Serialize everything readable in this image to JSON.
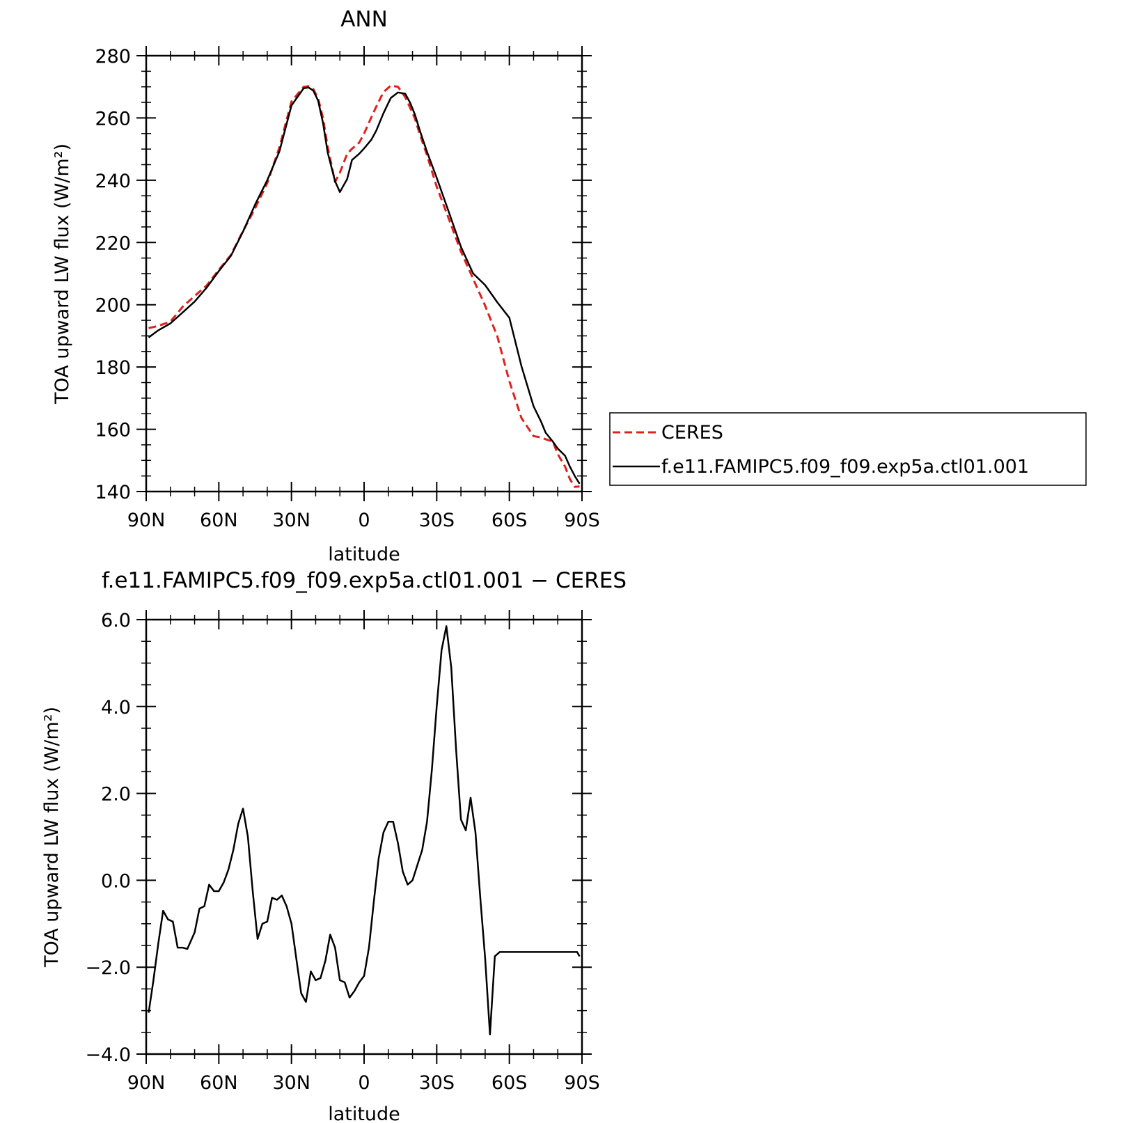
{
  "chart_data": [
    {
      "type": "line",
      "title": "ANN",
      "xlabel": "latitude",
      "ylabel": "TOA upward LW flux (W/m²)",
      "xlim": [
        90,
        -90
      ],
      "ylim": [
        140,
        280
      ],
      "x_ticks": [
        {
          "value": 90,
          "label": "90N"
        },
        {
          "value": 60,
          "label": "60N"
        },
        {
          "value": 30,
          "label": "30N"
        },
        {
          "value": 0,
          "label": "0"
        },
        {
          "value": -30,
          "label": "30S"
        },
        {
          "value": -60,
          "label": "60S"
        },
        {
          "value": -90,
          "label": "90S"
        }
      ],
      "y_ticks": [
        {
          "value": 140,
          "label": "140"
        },
        {
          "value": 160,
          "label": "160"
        },
        {
          "value": 180,
          "label": "180"
        },
        {
          "value": 200,
          "label": "200"
        },
        {
          "value": 220,
          "label": "220"
        },
        {
          "value": 240,
          "label": "240"
        },
        {
          "value": 260,
          "label": "260"
        },
        {
          "value": 280,
          "label": "280"
        }
      ],
      "grid": false,
      "legend_position": "right",
      "series": [
        {
          "name": "CERES",
          "color": "#e0201b",
          "dash": "dashed",
          "x": [
            89,
            85,
            80,
            75,
            70,
            65,
            60,
            55,
            50,
            45,
            40,
            35,
            30,
            25,
            23,
            21,
            19,
            17,
            15,
            12,
            10,
            7,
            5,
            2,
            0,
            -3,
            -5,
            -8,
            -11,
            -14,
            -17,
            -19,
            -21,
            -23,
            -26,
            -30,
            -35,
            -40,
            -45,
            -50,
            -55,
            -60,
            -65,
            -70,
            -73,
            -75,
            -78,
            -80,
            -83,
            -85,
            -87,
            -89
          ],
          "values": [
            192.5,
            193.2,
            194.6,
            199.3,
            202.8,
            206.2,
            211.2,
            216.0,
            223.7,
            231.0,
            239.1,
            250.5,
            265.3,
            270.0,
            270.2,
            269.3,
            266.3,
            260.0,
            250.6,
            239.4,
            242.4,
            248.5,
            250.1,
            252.1,
            255.0,
            260.2,
            263.6,
            268.3,
            270.4,
            270.0,
            266.7,
            263.3,
            259.8,
            254.8,
            248.0,
            237.9,
            227.6,
            217.1,
            208.4,
            199.7,
            189.9,
            175.4,
            163.6,
            157.8,
            157.4,
            156.8,
            156.0,
            152.0,
            148.0,
            144.0,
            141.5,
            141.6
          ]
        },
        {
          "name": "f.e11.FAMIPC5.f09_f09.exp5a.ctl01.001",
          "color": "#000000",
          "dash": "solid",
          "x": [
            89,
            85,
            80,
            75,
            70,
            65,
            60,
            55,
            50,
            45,
            40,
            35,
            30,
            25,
            23,
            21,
            19,
            17,
            15,
            12,
            10,
            7,
            5,
            2,
            0,
            -3,
            -5,
            -8,
            -11,
            -14,
            -17,
            -19,
            -21,
            -23,
            -26,
            -30,
            -35,
            -40,
            -45,
            -50,
            -55,
            -60,
            -65,
            -70,
            -73,
            -75,
            -78,
            -80,
            -83,
            -85,
            -87,
            -89
          ],
          "values": [
            189.5,
            191.8,
            194.0,
            197.5,
            201.0,
            205.5,
            210.8,
            215.7,
            223.5,
            232.2,
            240.0,
            249.2,
            264.0,
            269.5,
            269.8,
            268.8,
            265.6,
            258.5,
            248.8,
            239.7,
            236.2,
            240.4,
            246.5,
            248.5,
            250.2,
            253.0,
            255.9,
            261.5,
            266.4,
            268.2,
            267.8,
            264.9,
            261.1,
            256.0,
            249.1,
            240.8,
            229.8,
            218.6,
            210.1,
            206.3,
            200.8,
            195.8,
            180.2,
            167.4,
            162.6,
            158.9,
            156.0,
            153.8,
            151.5,
            148.0,
            145.0,
            142.5
          ]
        }
      ]
    },
    {
      "type": "line",
      "title": "f.e11.FAMIPC5.f09_f09.exp5a.ctl01.001 − CERES",
      "xlabel": "latitude",
      "ylabel": "TOA upward LW flux (W/m²)",
      "xlim": [
        90,
        -90
      ],
      "ylim": [
        -4,
        6
      ],
      "x_ticks": [
        {
          "value": 90,
          "label": "90N"
        },
        {
          "value": 60,
          "label": "60N"
        },
        {
          "value": 30,
          "label": "30N"
        },
        {
          "value": 0,
          "label": "0"
        },
        {
          "value": -30,
          "label": "30S"
        },
        {
          "value": -60,
          "label": "60S"
        },
        {
          "value": -90,
          "label": "90S"
        }
      ],
      "y_ticks": [
        {
          "value": -4,
          "label": "−4.0"
        },
        {
          "value": -2,
          "label": "−2.0"
        },
        {
          "value": 0,
          "label": "0.0"
        },
        {
          "value": 2,
          "label": "2.0"
        },
        {
          "value": 4,
          "label": "4.0"
        },
        {
          "value": 6,
          "label": "6.0"
        }
      ],
      "grid": false,
      "series": [
        {
          "color": "#000000",
          "x": [
            89,
            87,
            85,
            83,
            81,
            79,
            77,
            75,
            73,
            70,
            68,
            66,
            64,
            62,
            60,
            58,
            56,
            54,
            52,
            50,
            48,
            46,
            44,
            42,
            40,
            38,
            36,
            34,
            32,
            30,
            28,
            26,
            24,
            22,
            20,
            18,
            16,
            14,
            12,
            10,
            8,
            6,
            4,
            2,
            0,
            -2,
            -4,
            -6,
            -8,
            -10,
            -12,
            -14,
            -16,
            -18,
            -20,
            -22,
            -24,
            -26,
            -28,
            -30,
            -32,
            -34,
            -36,
            -38,
            -40,
            -42,
            -44,
            -46,
            -48,
            -50,
            -52,
            -54,
            -56,
            -58,
            -60,
            -62,
            -64,
            -66,
            -68,
            -70,
            -72,
            -74,
            -76,
            -78,
            -80,
            -82,
            -84,
            -86,
            -88,
            -89
          ],
          "values": [
            -3.05,
            -2.3,
            -1.45,
            -0.7,
            -0.9,
            -0.95,
            -1.55,
            -1.55,
            -1.58,
            -1.2,
            -0.65,
            -0.6,
            -0.1,
            -0.25,
            -0.25,
            -0.05,
            0.25,
            0.7,
            1.3,
            1.65,
            1.0,
            -0.25,
            -1.35,
            -1.0,
            -0.95,
            -0.4,
            -0.45,
            -0.35,
            -0.6,
            -1.0,
            -1.8,
            -2.6,
            -2.8,
            -2.1,
            -2.3,
            -2.25,
            -1.85,
            -1.25,
            -1.55,
            -2.3,
            -2.35,
            -2.7,
            -2.55,
            -2.35,
            -2.2,
            -1.55,
            -0.5,
            0.5,
            1.1,
            1.35,
            1.35,
            0.85,
            0.2,
            -0.1,
            0.0,
            0.35,
            0.7,
            1.35,
            2.55,
            4.0,
            5.3,
            5.85,
            4.9,
            3.0,
            1.4,
            1.15,
            1.9,
            1.1,
            -0.4,
            -1.8,
            -3.55,
            -1.75,
            -1.65,
            -1.65,
            -1.65,
            -1.65,
            -1.65,
            -1.65,
            -1.65,
            -1.65,
            -1.65,
            -1.65,
            -1.65,
            -1.65,
            -1.65,
            -1.65,
            -1.65,
            -1.65,
            -1.65,
            -1.75
          ]
        }
      ]
    }
  ]
}
